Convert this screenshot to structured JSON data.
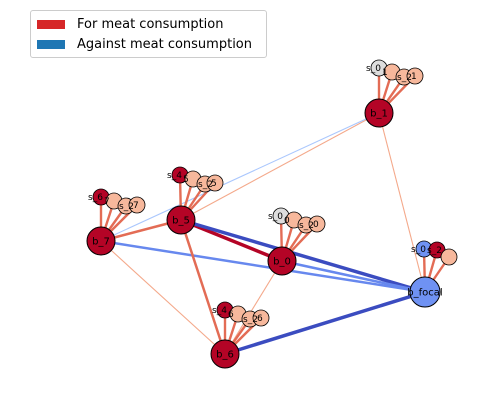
{
  "legend": {
    "for": {
      "label": "For meat consumption",
      "color": "#d62728"
    },
    "against": {
      "label": "Against meat consumption",
      "color": "#1f77b4"
    }
  },
  "nodes": [
    {
      "id": "b_1",
      "color": "#b40426"
    },
    {
      "id": "b_5",
      "color": "#b40426"
    },
    {
      "id": "b_7",
      "color": "#b40426"
    },
    {
      "id": "b_0",
      "color": "#b40426"
    },
    {
      "id": "b_6",
      "color": "#b40426"
    },
    {
      "id": "b_focal",
      "color": "#6f92f3"
    }
  ],
  "small_node_labels": [
    "s_0",
    "s_1",
    "s_5",
    "s_2",
    "s_7",
    "s_4",
    "s_6",
    "s_3"
  ],
  "clusters": [
    {
      "labels": [
        "s_0",
        "1",
        "s_2",
        "1"
      ],
      "colors": [
        "#dddddd",
        "#f7b89c",
        "#f7b89c",
        "#f7b89c"
      ]
    },
    {
      "labels": [
        "s_4",
        "5",
        "s_2",
        "5"
      ],
      "colors": [
        "#b40426",
        "#f7b89c",
        "#f7b89c",
        "#f7b89c"
      ]
    },
    {
      "labels": [
        "s_6",
        "7",
        "s_2",
        "7"
      ],
      "colors": [
        "#b40426",
        "#f7b89c",
        "#f7b89c",
        "#f7b89c"
      ]
    },
    {
      "labels": [
        "s_0",
        "0",
        "s_2",
        "0"
      ],
      "colors": [
        "#dddddd",
        "#f7b89c",
        "#f7b89c",
        "#f7b89c"
      ]
    },
    {
      "labels": [
        "s_4",
        "6",
        "s_2",
        "6"
      ],
      "colors": [
        "#b40426",
        "#f7b89c",
        "#f7b89c",
        "#f7b89c"
      ]
    },
    {
      "labels": [
        "s_0",
        "s_2"
      ],
      "colors": [
        "#6f92f3",
        "#b40426",
        "#f7b89c"
      ]
    }
  ],
  "edges": [
    {
      "from": "b_5",
      "to": "b_0",
      "color": "#b40426",
      "weight": "strong"
    },
    {
      "from": "b_5",
      "to": "b_focal",
      "color": "#3b4cc0",
      "weight": "strong"
    },
    {
      "from": "b_6",
      "to": "b_focal",
      "color": "#3b4cc0",
      "weight": "strong"
    },
    {
      "from": "b_7",
      "to": "b_focal",
      "color": "#6788ee",
      "weight": "medium"
    },
    {
      "from": "b_0",
      "to": "b_focal",
      "color": "#6788ee",
      "weight": "medium"
    },
    {
      "from": "b_5",
      "to": "b_7",
      "color": "#e36c55",
      "weight": "medium"
    },
    {
      "from": "b_5",
      "to": "b_6",
      "color": "#e36c55",
      "weight": "medium"
    },
    {
      "from": "b_5",
      "to": "b_1",
      "color": "#f4a98b",
      "weight": "weak"
    },
    {
      "from": "b_7",
      "to": "b_1",
      "color": "#aac7fd",
      "weight": "weak"
    },
    {
      "from": "b_1",
      "to": "b_focal",
      "color": "#f4a98b",
      "weight": "weak"
    },
    {
      "from": "b_7",
      "to": "b_6",
      "color": "#f4a98b",
      "weight": "weak"
    },
    {
      "from": "b_0",
      "to": "b_6",
      "color": "#f4a98b",
      "weight": "weak"
    }
  ]
}
